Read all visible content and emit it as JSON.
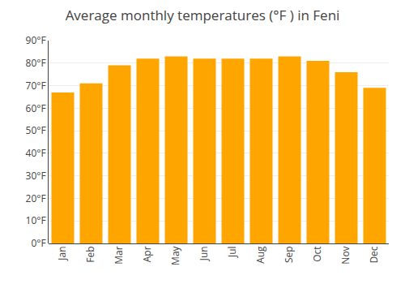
{
  "chart_data": {
    "type": "bar",
    "title": "Average monthly temperatures (°F ) in Feni",
    "categories": [
      "Jan",
      "Feb",
      "Mar",
      "Apr",
      "May",
      "Jun",
      "Jul",
      "Aug",
      "Sep",
      "Oct",
      "Nov",
      "Dec"
    ],
    "values": [
      67,
      71,
      79,
      82,
      83,
      82,
      82,
      82,
      83,
      81,
      76,
      69
    ],
    "color": "#FFA500",
    "ylim": [
      0,
      90
    ],
    "yticks": [
      {
        "value": 0,
        "label": "0°F"
      },
      {
        "value": 10,
        "label": "10°F"
      },
      {
        "value": 20,
        "label": "20°F"
      },
      {
        "value": 30,
        "label": "30°F"
      },
      {
        "value": 40,
        "label": "40°F"
      },
      {
        "value": 50,
        "label": "50°F"
      },
      {
        "value": 60,
        "label": "60°F"
      },
      {
        "value": 70,
        "label": "70°F"
      },
      {
        "value": 80,
        "label": "80°F"
      },
      {
        "value": 90,
        "label": "90°F"
      }
    ],
    "grid": true
  }
}
